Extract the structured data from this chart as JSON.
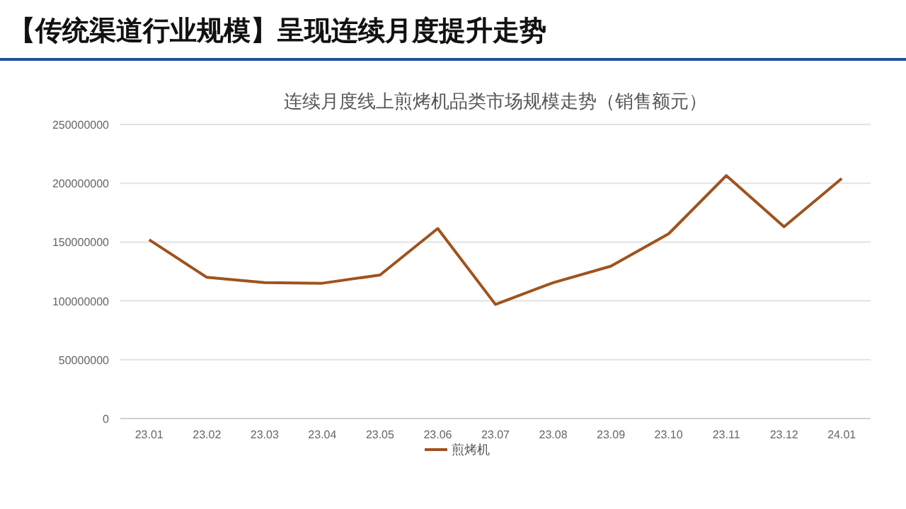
{
  "chart_data": {
    "type": "line",
    "title": "【传统渠道行业规模】呈现连续月度提升走势",
    "subtitle": "连续月度线上煎烤机品类市场规模走势（销售额元）",
    "categories": [
      "23.01",
      "23.02",
      "23.03",
      "23.04",
      "23.05",
      "23.06",
      "23.07",
      "23.08",
      "23.09",
      "23.10",
      "23.11",
      "23.12",
      "24.01"
    ],
    "series": [
      {
        "name": "煎烤机",
        "color": "#a0521e",
        "values": [
          152000000,
          120000000,
          115500000,
          115000000,
          122000000,
          161500000,
          97000000,
          115500000,
          129500000,
          157000000,
          206500000,
          163000000,
          204000000
        ]
      }
    ],
    "ylim": [
      0,
      250000000
    ],
    "yticks": [
      0,
      50000000,
      100000000,
      150000000,
      200000000,
      250000000
    ],
    "grid": "y",
    "legend": "bottom",
    "marker": "none",
    "line_style": "solid"
  }
}
